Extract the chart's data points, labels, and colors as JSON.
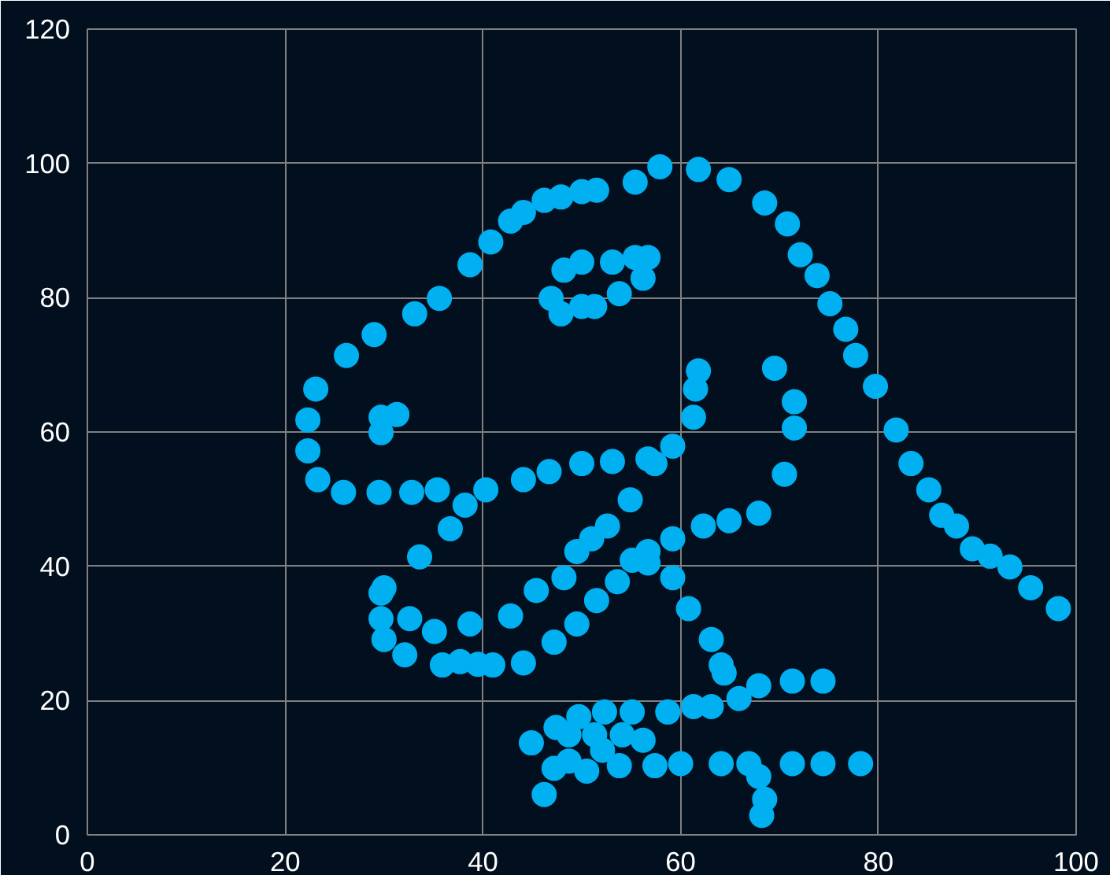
{
  "chart_data": {
    "type": "scatter",
    "xlim": [
      0,
      100
    ],
    "ylim": [
      0,
      120
    ],
    "xticks": [
      0,
      20,
      40,
      60,
      80,
      100
    ],
    "yticks": [
      0,
      20,
      40,
      60,
      80,
      100,
      120
    ],
    "grid": true,
    "marker": "circle",
    "series": [
      {
        "color": "#00b0f0",
        "x": [
          55.4,
          51.5,
          46.2,
          42.8,
          40.8,
          38.7,
          35.6,
          33.1,
          29.0,
          26.2,
          23.1,
          22.3,
          22.3,
          23.3,
          25.9,
          29.5,
          32.8,
          35.4,
          40.3,
          44.1,
          46.7,
          50.0,
          53.1,
          56.7,
          59.2,
          61.3,
          61.5,
          61.8,
          57.4,
          54.9,
          52.6,
          48.2,
          49.5,
          51.0,
          45.4,
          42.8,
          38.7,
          35.1,
          32.6,
          30.0,
          33.6,
          36.7,
          38.2,
          29.7,
          29.7,
          30.0,
          32.1,
          35.9,
          41.0,
          44.1,
          47.2,
          49.5,
          51.5,
          53.6,
          55.1,
          56.7,
          59.2,
          62.3,
          64.9,
          67.9,
          70.5,
          71.5,
          71.5,
          69.5,
          46.9,
          48.2,
          50.0,
          53.1,
          55.4,
          56.7,
          56.2,
          53.8,
          51.3,
          50.0,
          47.9,
          29.7,
          29.7,
          31.3,
          57.9,
          61.8,
          64.9,
          68.5,
          70.8,
          72.1,
          73.8,
          75.1,
          76.7,
          77.7,
          79.7,
          81.8,
          83.3,
          85.1,
          86.4,
          87.9,
          89.5,
          93.3,
          95.4,
          98.2,
          56.7,
          59.2,
          60.8,
          63.1,
          64.1,
          64.4,
          74.4,
          71.3,
          67.9,
          65.9,
          63.1,
          61.3,
          58.7,
          55.1,
          52.3,
          49.7,
          47.4,
          44.9,
          48.7,
          51.3,
          54.1,
          56.2,
          52.1,
          48.7,
          47.2,
          46.2,
          50.5,
          53.8,
          57.4,
          60.0,
          64.1,
          66.9,
          71.3,
          74.4,
          78.2,
          67.9,
          68.5,
          68.2,
          37.7,
          39.5,
          91.3,
          50.0,
          47.9,
          44.1
        ],
        "values": [
          97.2,
          96.0,
          94.5,
          91.4,
          88.3,
          84.9,
          79.9,
          77.6,
          74.5,
          71.4,
          66.4,
          61.8,
          57.2,
          52.9,
          51.0,
          51.0,
          51.0,
          51.4,
          51.4,
          52.9,
          54.1,
          55.3,
          55.6,
          56.0,
          57.9,
          62.2,
          66.4,
          69.1,
          55.3,
          49.9,
          46.0,
          38.3,
          42.2,
          44.1,
          36.4,
          32.6,
          31.4,
          30.3,
          32.2,
          36.8,
          41.4,
          45.6,
          49.1,
          36.0,
          32.2,
          29.1,
          26.8,
          25.3,
          25.3,
          25.6,
          28.7,
          31.4,
          34.9,
          37.7,
          40.9,
          42.2,
          44.1,
          46.0,
          46.8,
          47.9,
          53.7,
          60.6,
          64.5,
          69.5,
          79.9,
          84.1,
          85.3,
          85.3,
          86.0,
          86.0,
          82.9,
          80.6,
          78.7,
          78.7,
          77.6,
          59.9,
          62.2,
          62.6,
          99.5,
          99.1,
          97.6,
          94.1,
          91.0,
          86.4,
          83.3,
          79.1,
          75.3,
          71.4,
          66.8,
          60.3,
          55.3,
          51.4,
          47.6,
          46.0,
          42.6,
          39.9,
          36.8,
          33.7,
          40.5,
          38.3,
          33.7,
          29.1,
          25.3,
          24.1,
          22.9,
          22.9,
          22.2,
          20.3,
          19.1,
          19.1,
          18.3,
          18.3,
          18.3,
          17.6,
          16.0,
          13.7,
          14.9,
          14.9,
          14.9,
          14.1,
          12.6,
          11.0,
          9.9,
          6.0,
          9.5,
          10.3,
          10.3,
          10.6,
          10.6,
          10.6,
          10.6,
          10.6,
          10.6,
          8.7,
          5.3,
          2.9,
          25.8,
          25.4,
          41.5,
          95.8,
          95.0,
          92.7
        ]
      }
    ]
  }
}
